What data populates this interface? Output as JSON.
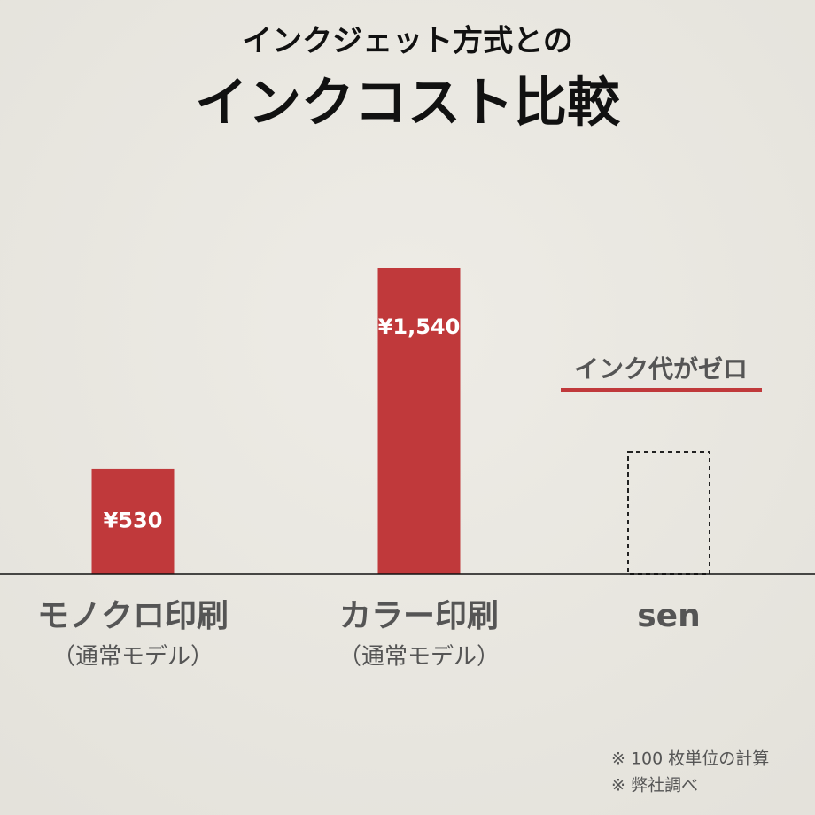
{
  "chart_data": {
    "type": "bar",
    "title": "インクジェット方式との",
    "subtitle": "インクコスト比較",
    "categories": [
      "モノクロ印刷",
      "カラー印刷",
      "sen"
    ],
    "category_notes": [
      "（通常モデル）",
      "（通常モデル）",
      null
    ],
    "values": [
      530,
      1540,
      0
    ],
    "value_labels": [
      "¥530",
      "¥1,540",
      null
    ],
    "color": "#c0393b",
    "annotation": "インク代がゼロ",
    "notes": [
      "※ 100 枚単位の計算",
      "※ 弊社調べ"
    ]
  }
}
